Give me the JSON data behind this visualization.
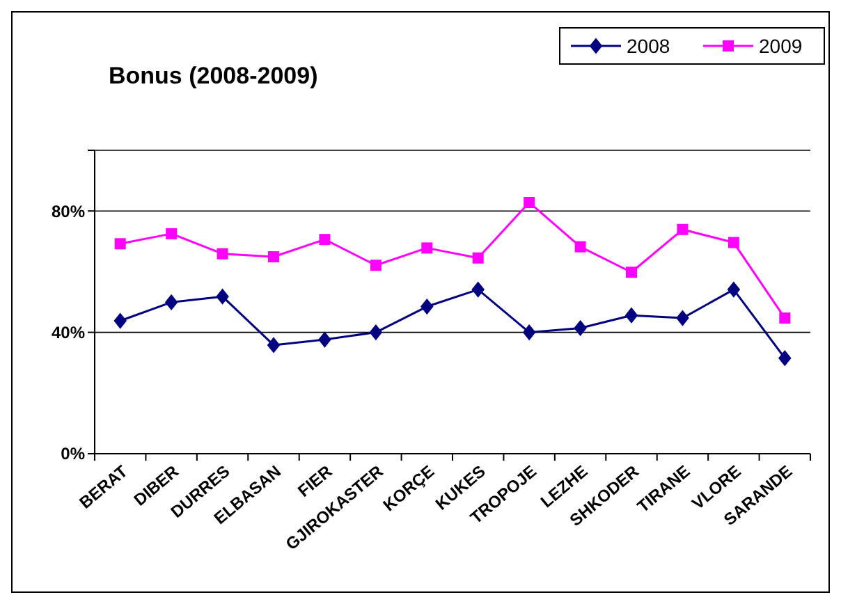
{
  "chart_data": {
    "type": "line",
    "title": "Bonus (2008-2009)",
    "categories": [
      "BERAT",
      "DIBER",
      "DURRES",
      "ELBASAN",
      "FIER",
      "GJIROKASTER",
      "KORÇE",
      "KUKES",
      "TROPOJE",
      "LEZHE",
      "SHKODER",
      "TIRANE",
      "VLORE",
      "SARANDE"
    ],
    "series": [
      {
        "name": "2008",
        "color": "#000080",
        "marker": "diamond",
        "values": [
          43.8,
          49.9,
          51.8,
          35.8,
          37.6,
          40,
          48.5,
          54.1,
          40,
          41.4,
          45.6,
          44.7,
          54.1,
          31.5
        ]
      },
      {
        "name": "2009",
        "color": "#ff00ff",
        "marker": "square",
        "values": [
          69.2,
          72.5,
          65.9,
          64.9,
          70.6,
          62.1,
          67.8,
          64.5,
          82.8,
          68.2,
          59.8,
          73.9,
          69.6,
          44.7
        ]
      }
    ],
    "ylim": [
      0,
      100
    ],
    "yticks": [
      {
        "value": 0,
        "label": "0%"
      },
      {
        "value": 40,
        "label": "40%"
      },
      {
        "value": 80,
        "label": "80%"
      },
      {
        "value": 100,
        "label": null
      }
    ],
    "grid": "y",
    "legend": "top right"
  }
}
